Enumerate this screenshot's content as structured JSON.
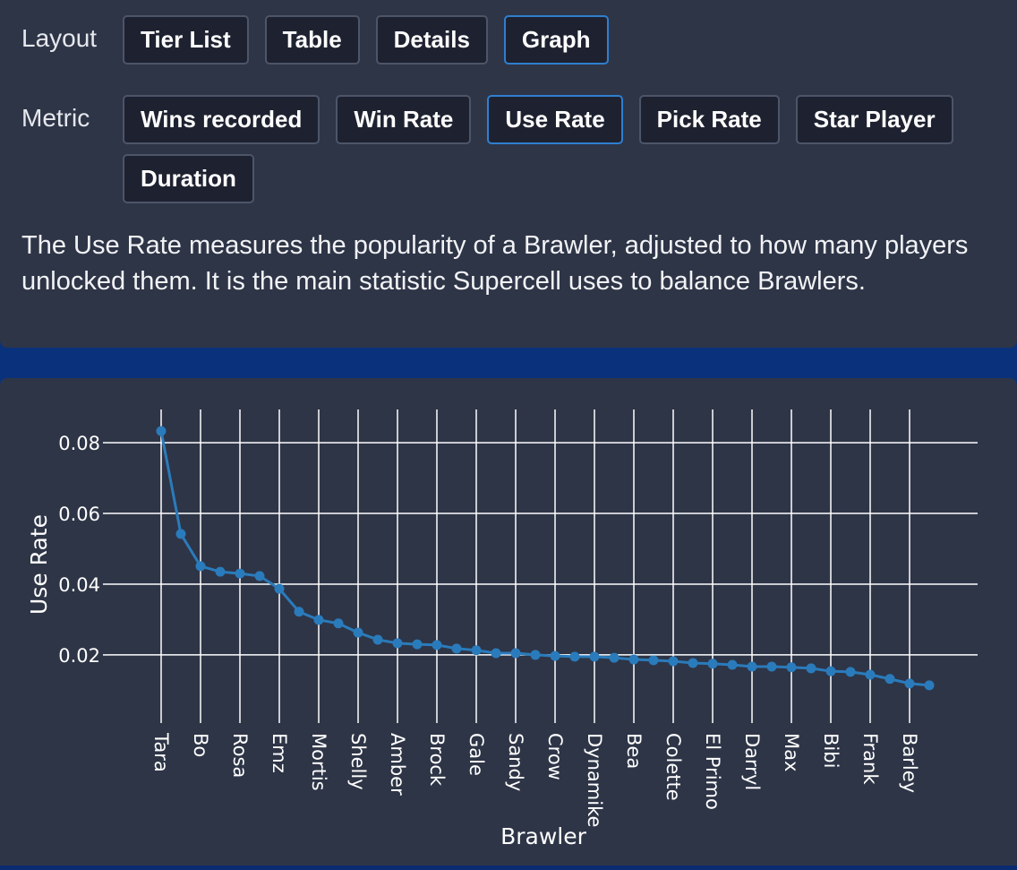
{
  "controls": {
    "layout": {
      "label": "Layout",
      "options": [
        "Tier List",
        "Table",
        "Details",
        "Graph"
      ],
      "selected": 3
    },
    "metric": {
      "label": "Metric",
      "options": [
        "Wins recorded",
        "Win Rate",
        "Use Rate",
        "Pick Rate",
        "Star Player",
        "Duration"
      ],
      "selected": 2
    }
  },
  "description": "The Use Rate measures the popularity of a Brawler, adjusted to how many players unlocked them. It is the main statistic Supercell uses to balance Brawlers.",
  "chart_data": {
    "type": "line",
    "x_label": "Brawler",
    "y_label": "Use Rate",
    "color": "#2a7bbb",
    "grid": true,
    "categories": [
      "Tara",
      null,
      "Bo",
      null,
      "Rosa",
      null,
      "Emz",
      null,
      "Mortis",
      null,
      "Shelly",
      null,
      "Amber",
      null,
      "Brock",
      null,
      "Gale",
      null,
      "Sandy",
      null,
      "Crow",
      null,
      "Dynamike",
      null,
      "Bea",
      null,
      "Colette",
      null,
      "El Primo",
      null,
      "Darryl",
      null,
      "Max",
      null,
      "Bibi",
      null,
      "Frank",
      null,
      "Barley",
      null
    ],
    "values": [
      0.0833,
      0.0542,
      0.0451,
      0.0435,
      0.043,
      0.0423,
      0.0387,
      0.0322,
      0.0299,
      0.0289,
      0.0263,
      0.0243,
      0.0233,
      0.023,
      0.0228,
      0.0218,
      0.0213,
      0.0205,
      0.0205,
      0.02,
      0.0197,
      0.0195,
      0.0195,
      0.0192,
      0.0187,
      0.0185,
      0.0182,
      0.0177,
      0.0175,
      0.0172,
      0.0167,
      0.0167,
      0.0165,
      0.0162,
      0.0154,
      0.0152,
      0.0144,
      0.0132,
      0.0119,
      0.0114
    ],
    "ylim": [
      0.0025,
      0.0894
    ],
    "yticks": [
      0.02,
      0.04,
      0.06,
      0.08
    ]
  }
}
